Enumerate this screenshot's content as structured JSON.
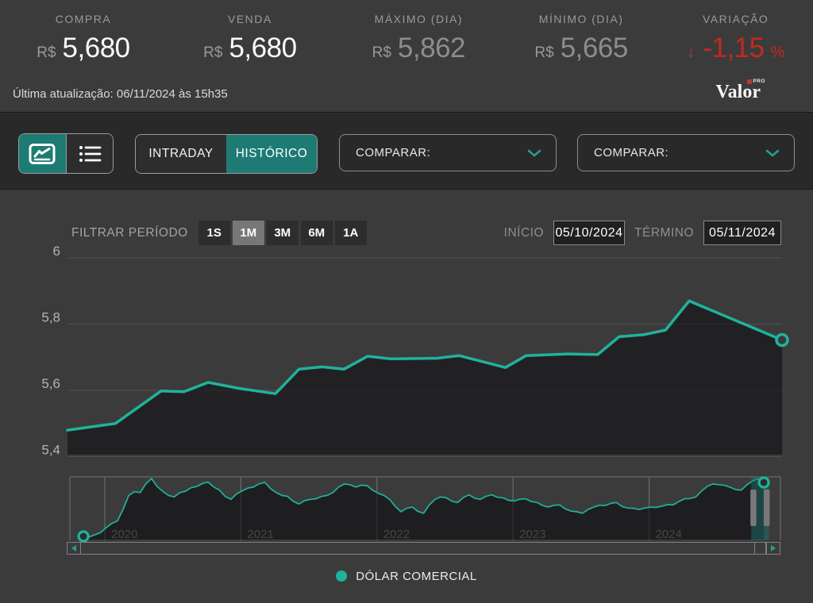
{
  "colors": {
    "accent_teal": "#1d7b74",
    "line_teal": "#1fb39b",
    "negative_red": "#c5291f",
    "background": "#3b3b3c"
  },
  "stats": [
    {
      "label": "COMPRA",
      "currency": "R$",
      "value": "5,680"
    },
    {
      "label": "VENDA",
      "currency": "R$",
      "value": "5,680"
    },
    {
      "label": "MÁXIMO (DIA)",
      "currency": "R$",
      "value": "5,862"
    },
    {
      "label": "MÍNIMO (DIA)",
      "currency": "R$",
      "value": "5,665"
    },
    {
      "label": "VARIAÇÃO",
      "arrow": "↓",
      "value": "-1,15",
      "suffix": "%"
    }
  ],
  "update_bar": {
    "last_update": "Última atualização: 06/11/2024 às 15h35",
    "logo_text": "Valor",
    "logo_badge": "PRO"
  },
  "toolbar": {
    "view_toggle": [
      {
        "name": "chart-view",
        "active": true
      },
      {
        "name": "list-view",
        "active": false
      }
    ],
    "tabs": [
      {
        "label": "INTRADAY",
        "active": false
      },
      {
        "label": "HISTÓRICO",
        "active": true
      }
    ],
    "compare_1": {
      "label": "COMPARAR:"
    },
    "compare_2": {
      "label": "COMPARAR:"
    }
  },
  "filters": {
    "label": "FILTRAR PERÍODO",
    "periods": [
      {
        "label": "1S",
        "active": false
      },
      {
        "label": "1M",
        "active": true
      },
      {
        "label": "3M",
        "active": false
      },
      {
        "label": "6M",
        "active": false
      },
      {
        "label": "1A",
        "active": false
      }
    ],
    "start_label": "INÍCIO",
    "start_value": "05/10/2024",
    "end_label": "TÉRMINO",
    "end_value": "05/11/2024"
  },
  "legend": {
    "label": "DÓLAR COMERCIAL"
  },
  "chart_data": {
    "type": "area",
    "title": "DÓLAR COMERCIAL",
    "unit": "R$",
    "main": {
      "x_range": [
        "05/10/2024",
        "05/11/2024"
      ],
      "ylim": [
        5.4,
        6.0
      ],
      "y_ticks": [
        {
          "label": "6",
          "value": 6.0
        },
        {
          "label": "5,8",
          "value": 5.8
        },
        {
          "label": "5,6",
          "value": 5.6
        },
        {
          "label": "5,4",
          "value": 5.4
        }
      ],
      "points": [
        [
          0.0,
          5.48
        ],
        [
          0.067,
          5.5
        ],
        [
          0.131,
          5.598
        ],
        [
          0.163,
          5.596
        ],
        [
          0.197,
          5.624
        ],
        [
          0.24,
          5.606
        ],
        [
          0.291,
          5.59
        ],
        [
          0.324,
          5.664
        ],
        [
          0.356,
          5.671
        ],
        [
          0.387,
          5.664
        ],
        [
          0.42,
          5.703
        ],
        [
          0.452,
          5.695
        ],
        [
          0.517,
          5.697
        ],
        [
          0.548,
          5.705
        ],
        [
          0.613,
          5.669
        ],
        [
          0.642,
          5.705
        ],
        [
          0.7,
          5.71
        ],
        [
          0.742,
          5.708
        ],
        [
          0.772,
          5.762
        ],
        [
          0.806,
          5.768
        ],
        [
          0.837,
          5.782
        ],
        [
          0.87,
          5.87
        ],
        [
          1.0,
          5.752
        ]
      ]
    },
    "mini": {
      "year_ticks": [
        2020,
        2021,
        2022,
        2023,
        2024
      ],
      "t_start": 2019.843,
      "points_per_year": 24,
      "vmin": 4.0,
      "vmax": 5.9,
      "brush_t": [
        2024.75,
        2024.88
      ],
      "values": [
        4.0,
        3.98,
        4.05,
        4.12,
        4.28,
        4.42,
        4.5,
        4.88,
        5.33,
        5.45,
        5.42,
        5.7,
        5.88,
        5.62,
        5.46,
        5.33,
        5.28,
        5.42,
        5.47,
        5.58,
        5.62,
        5.72,
        5.76,
        5.6,
        5.5,
        5.3,
        5.2,
        5.38,
        5.48,
        5.57,
        5.6,
        5.71,
        5.75,
        5.55,
        5.42,
        5.33,
        5.3,
        5.14,
        5.05,
        5.16,
        5.2,
        5.22,
        5.3,
        5.33,
        5.42,
        5.6,
        5.7,
        5.68,
        5.6,
        5.66,
        5.65,
        5.5,
        5.4,
        5.33,
        5.2,
        4.97,
        4.8,
        4.91,
        4.95,
        4.81,
        4.75,
        5.02,
        5.2,
        5.28,
        5.25,
        5.14,
        5.1,
        5.26,
        5.35,
        5.24,
        5.2,
        5.3,
        5.35,
        5.27,
        5.25,
        5.17,
        5.15,
        5.21,
        5.22,
        5.13,
        5.1,
        5.0,
        4.95,
        5.01,
        5.02,
        4.89,
        4.82,
        4.8,
        4.75,
        4.87,
        4.95,
        5.01,
        5.0,
        5.07,
        5.1,
        4.97,
        4.92,
        4.91,
        4.87,
        4.92,
        4.95,
        4.94,
        4.98,
        5.03,
        5.02,
        5.13,
        5.22,
        5.23,
        5.28,
        5.47,
        5.62,
        5.7,
        5.68,
        5.66,
        5.6,
        5.52,
        5.5,
        5.67,
        5.8,
        5.87,
        5.75
      ]
    }
  }
}
